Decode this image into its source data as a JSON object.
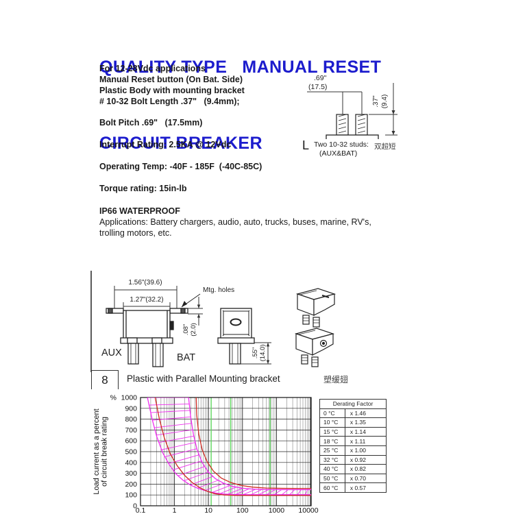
{
  "title": {
    "line1": "QUALITY TYPE   MANUAL RESET",
    "line2": "CIRCUIT BREAKER",
    "color": "#1c1ccd"
  },
  "specs": {
    "lines": [
      "For 12-28Vdc applications",
      "Manual Reset button (On Bat. Side)",
      "Plastic Body with mounting bracket",
      "# 10-32 Bolt Length .37\"   (9.4mm);",
      "Bolt Pitch .69\"   (17.5mm)",
      "Interrupt Rating: 2.5KA @ 12Vdc",
      "Operating Temp: -40F - 185F  (-40C-85C)",
      "Torque rating: 15in-lb",
      "IP66 WATERPROOF",
      "Applications: Battery chargers, audio, auto, trucks, buses, marine, RV's,",
      "trolling motors, etc."
    ]
  },
  "stud_drawing": {
    "dim_width_in": ".69\"",
    "dim_width_mm": "(17.5)",
    "dim_height_in": ".37\"",
    "dim_height_mm": "(9.4)",
    "caption_prefix": "L",
    "caption": "Two 10-32 studs:",
    "caption_cn": "双超短",
    "caption_sub": "(AUX&BAT)"
  },
  "product_drawing": {
    "dim_outer": "1.56\"(39.6)",
    "dim_inner": "1.27\"(32.2)",
    "mtg_label": "Mtg. holes",
    "dim_ear_in": ".08\"",
    "dim_ear_mm": "(2.0)",
    "dim_stud_in": ".55\"",
    "dim_stud_mm": "(14.0)",
    "label_aux": "AUX",
    "label_bat": "BAT"
  },
  "variant_row": {
    "number": "8",
    "label": "Plastic with Parallel Mounting bracket",
    "label_cn": "塑缓翅"
  },
  "chart_data": {
    "type": "line",
    "x_scale": "log",
    "x_range": [
      0.1,
      20000
    ],
    "y_range": [
      0,
      1000
    ],
    "x_ticks": [
      0.1,
      1,
      10,
      100,
      1000,
      10000
    ],
    "y_ticks": [
      0,
      100,
      200,
      300,
      400,
      500,
      600,
      700,
      800,
      900,
      1000
    ],
    "y_unit": "%",
    "ylabel": "Load current as a percent of circuit break rating",
    "ylabel_lines": [
      "Load current as a percent",
      "of circuit break rating"
    ],
    "grid": true,
    "colors": {
      "magenta": "#ee2fee",
      "red": "#cf2a22",
      "green": "#5fd75f",
      "grid_minor": "#777777",
      "grid_major": "#222222"
    },
    "green_lines": [
      12,
      45,
      650
    ],
    "series": [
      {
        "name": "trip-band-min-magenta",
        "color": "#ee2fee",
        "points": [
          [
            0.16,
            1000
          ],
          [
            0.22,
            800
          ],
          [
            0.3,
            640
          ],
          [
            0.45,
            490
          ],
          [
            0.7,
            380
          ],
          [
            1.1,
            295
          ],
          [
            1.8,
            235
          ],
          [
            3,
            190
          ],
          [
            5,
            160
          ],
          [
            9,
            135
          ],
          [
            16,
            118
          ],
          [
            30,
            108
          ],
          [
            60,
            104
          ],
          [
            150,
            103
          ],
          [
            500,
            103
          ],
          [
            2000,
            103
          ],
          [
            8000,
            103
          ],
          [
            20000,
            103
          ]
        ]
      },
      {
        "name": "trip-min-red",
        "color": "#cf2a22",
        "points": [
          [
            0.27,
            1000
          ],
          [
            0.36,
            800
          ],
          [
            0.5,
            630
          ],
          [
            0.75,
            480
          ],
          [
            1.2,
            370
          ],
          [
            2,
            280
          ],
          [
            3.3,
            215
          ],
          [
            5.5,
            168
          ],
          [
            9,
            135
          ],
          [
            15,
            112
          ],
          [
            28,
            100
          ],
          [
            60,
            96
          ],
          [
            200,
            95
          ],
          [
            1000,
            95
          ],
          [
            5000,
            95
          ],
          [
            20000,
            95
          ]
        ]
      },
      {
        "name": "trip-band-max-magenta",
        "color": "#ee2fee",
        "points": [
          [
            2.6,
            1000
          ],
          [
            3,
            820
          ],
          [
            3.6,
            660
          ],
          [
            4.6,
            520
          ],
          [
            6.5,
            400
          ],
          [
            10,
            310
          ],
          [
            16,
            250
          ],
          [
            28,
            208
          ],
          [
            50,
            180
          ],
          [
            100,
            162
          ],
          [
            220,
            153
          ],
          [
            600,
            150
          ],
          [
            2000,
            149
          ],
          [
            8000,
            149
          ],
          [
            20000,
            149
          ]
        ]
      },
      {
        "name": "trip-max-red",
        "color": "#cf2a22",
        "points": [
          [
            4.35,
            1000
          ],
          [
            4.5,
            840
          ],
          [
            5.2,
            660
          ],
          [
            6.5,
            520
          ],
          [
            9,
            410
          ],
          [
            14,
            320
          ],
          [
            24,
            255
          ],
          [
            45,
            215
          ],
          [
            90,
            188
          ],
          [
            200,
            172
          ],
          [
            500,
            164
          ],
          [
            1500,
            161
          ],
          [
            6000,
            160
          ],
          [
            20000,
            160
          ]
        ]
      }
    ],
    "hatch_between": [
      0,
      2
    ],
    "legend_position": "none",
    "title": ""
  },
  "derating_table": {
    "header": "Derating Factor",
    "rows": [
      [
        "0 °C",
        "x 1.46"
      ],
      [
        "10 °C",
        "x 1.35"
      ],
      [
        "15 °C",
        "x 1.14"
      ],
      [
        "18 °C",
        "x 1.11"
      ],
      [
        "25 °C",
        "x 1.00"
      ],
      [
        "32 °C",
        "x 0.92"
      ],
      [
        "40 °C",
        "x 0.82"
      ],
      [
        "50 °C",
        "x 0.70"
      ],
      [
        "60 °C",
        "x 0.57"
      ]
    ]
  }
}
